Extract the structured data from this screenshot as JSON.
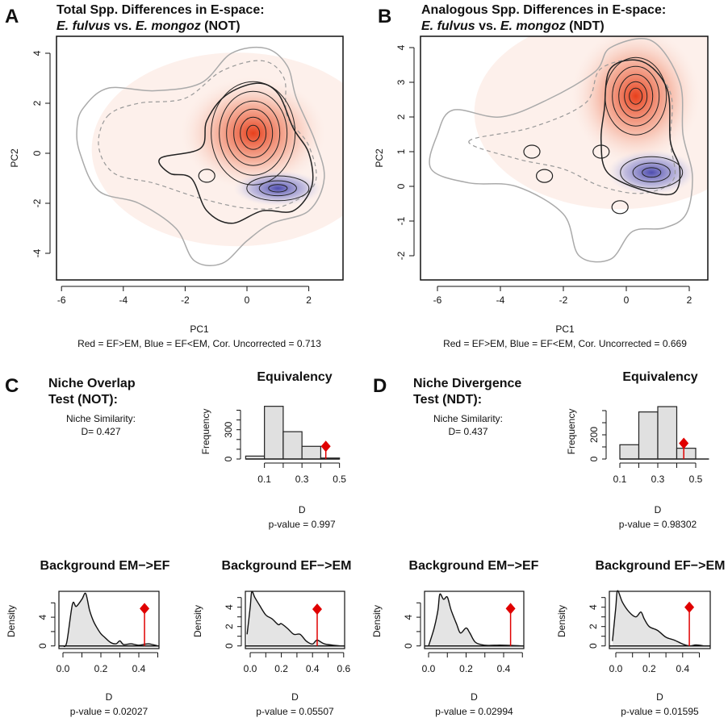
{
  "colors": {
    "positive": "#e8401c",
    "negative": "#3a3aa8",
    "marker": "#e00000",
    "bar_fill": "#e0e0e0",
    "contour_outer": "#aaaaaa"
  },
  "panels": {
    "A": {
      "letter": "A",
      "title_line1": "Total Spp. Differences in E-space:",
      "species1": "E. fulvus",
      "vs": " vs. ",
      "species2": "E. mongoz",
      "test": " (NOT)",
      "xlabel": "PC1",
      "ylabel": "PC2",
      "subtitle": "Red = EF>EM, Blue = EF<EM, Cor. Uncorrected = 0.713"
    },
    "B": {
      "letter": "B",
      "title_line1": "Analogous Spp. Differences in E-space:",
      "species1": "E. fulvus",
      "vs": " vs. ",
      "species2": "E. mongoz",
      "test": " (NDT)",
      "xlabel": "PC1",
      "ylabel": "PC2",
      "subtitle": "Red = EF>EM, Blue = EF<EM, Cor. Uncorrected = 0.669"
    },
    "C": {
      "letter": "C",
      "title_line1": "Niche Overlap",
      "title_line2": "Test (NOT):",
      "similarity_label": "Niche Similarity:",
      "similarity_value": "D= 0.427"
    },
    "D": {
      "letter": "D",
      "title_line1": "Niche Divergence",
      "title_line2": "Test (NDT):",
      "similarity_label": "Niche Similarity:",
      "similarity_value": "D= 0.437"
    }
  },
  "chart_data": [
    {
      "id": "A",
      "type": "heatmap",
      "xlim": [
        -6.15,
        3.1
      ],
      "ylim": [
        -5.05,
        4.7
      ],
      "xticks": [
        "-6",
        "-4",
        "-2",
        "0",
        "2"
      ],
      "yticks": [
        "4",
        "2",
        "0",
        "-2",
        "-4"
      ],
      "max_positive_peak": [
        0.2,
        0.8
      ],
      "max_negative_peak": [
        1.0,
        -1.4
      ],
      "correlation_uncorrected": 0.713
    },
    {
      "id": "B",
      "type": "heatmap",
      "xlim": [
        -6.5,
        2.6
      ],
      "ylim": [
        -2.7,
        4.3
      ],
      "xticks": [
        "-6",
        "-4",
        "-2",
        "0",
        "2"
      ],
      "yticks": [
        "4",
        "3",
        "2",
        "1",
        "0",
        "-1",
        "-2"
      ],
      "max_positive_peak": [
        0.3,
        2.6
      ],
      "max_negative_peak": [
        0.8,
        0.4
      ],
      "correlation_uncorrected": 0.669
    },
    {
      "id": "C-equivalency",
      "type": "bar",
      "title": "Equivalency",
      "xlabel": "D",
      "ylabel": "Frequency",
      "bins": [
        [
          0.0,
          0.1
        ],
        [
          0.1,
          0.2
        ],
        [
          0.2,
          0.3
        ],
        [
          0.3,
          0.4
        ],
        [
          0.4,
          0.5
        ]
      ],
      "values": [
        30,
        540,
        280,
        130,
        10
      ],
      "xticks": [
        "0.1",
        "0.3",
        "0.5"
      ],
      "yticks": [
        "0",
        "300"
      ],
      "observed": 0.427,
      "pvalue_text": "p-value =  0.997"
    },
    {
      "id": "D-equivalency",
      "type": "bar",
      "title": "Equivalency",
      "xlabel": "D",
      "ylabel": "Frequency",
      "bins": [
        [
          0.1,
          0.2
        ],
        [
          0.2,
          0.3
        ],
        [
          0.3,
          0.4
        ],
        [
          0.4,
          0.5
        ]
      ],
      "values": [
        118,
        389,
        433,
        89
      ],
      "xticks": [
        "0.1",
        "0.3",
        "0.5"
      ],
      "yticks": [
        "0",
        "200"
      ],
      "observed": 0.437,
      "pvalue_text": "p-value =  0.98302"
    },
    {
      "id": "C-bg-em-ef",
      "type": "area",
      "title": "Background EM−>EF",
      "xlabel": "D",
      "ylabel": "Density",
      "x": [
        0,
        0.02,
        0.05,
        0.07,
        0.1,
        0.12,
        0.14,
        0.16,
        0.18,
        0.2,
        0.22,
        0.25,
        0.28,
        0.3,
        0.32,
        0.36,
        0.4,
        0.45,
        0.5
      ],
      "y": [
        0,
        0.5,
        5.8,
        5.5,
        6.5,
        7.3,
        5,
        3.5,
        2.5,
        1.7,
        1.2,
        0.5,
        0.3,
        0.7,
        0.2,
        0.3,
        0.1,
        0.3,
        0
      ],
      "xticks": [
        "0.0",
        "0.2",
        "0.4"
      ],
      "yticks": [
        "0",
        "4"
      ],
      "observed": 0.43,
      "pvalue_text": "p-value =  0.02027"
    },
    {
      "id": "C-bg-ef-em",
      "type": "area",
      "title": "Background EF−>EM",
      "xlabel": "D",
      "ylabel": "Density",
      "x": [
        -0.02,
        0,
        0.01,
        0.03,
        0.06,
        0.1,
        0.14,
        0.18,
        0.2,
        0.24,
        0.28,
        0.32,
        0.36,
        0.4,
        0.43,
        0.48,
        0.58
      ],
      "y": [
        1.2,
        4,
        5.6,
        5,
        4.2,
        3.2,
        2.8,
        2.2,
        2.3,
        1.8,
        1.2,
        1.2,
        0.5,
        0.2,
        0.6,
        0.2,
        0
      ],
      "xticks": [
        "0.0",
        "0.2",
        "0.4",
        "0.6"
      ],
      "yticks": [
        "0",
        "2",
        "4"
      ],
      "observed": 0.43,
      "pvalue_text": "p-value =  0.05507"
    },
    {
      "id": "D-bg-em-ef",
      "type": "area",
      "title": "Background EM−>EF",
      "xlabel": "D",
      "ylabel": "Density",
      "x": [
        0,
        0.03,
        0.05,
        0.06,
        0.08,
        0.1,
        0.12,
        0.15,
        0.17,
        0.2,
        0.22,
        0.25,
        0.3,
        0.35,
        0.4,
        0.5
      ],
      "y": [
        0,
        2.5,
        5,
        7.2,
        6.5,
        6.8,
        5,
        3,
        1.8,
        2.5,
        1.8,
        0.5,
        0.1,
        0.1,
        0.1,
        0
      ],
      "xticks": [
        "0.0",
        "0.2",
        "0.4"
      ],
      "yticks": [
        "0",
        "4"
      ],
      "observed": 0.437,
      "pvalue_text": "p-value =  0.02994"
    },
    {
      "id": "D-bg-ef-em",
      "type": "area",
      "title": "Background EF−>EM",
      "xlabel": "D",
      "ylabel": "Density",
      "x": [
        -0.02,
        0,
        0.01,
        0.04,
        0.08,
        0.12,
        0.15,
        0.17,
        0.2,
        0.25,
        0.3,
        0.35,
        0.4,
        0.44,
        0.48,
        0.53
      ],
      "y": [
        0.5,
        4,
        5.7,
        4.5,
        3.5,
        3,
        3.5,
        2.8,
        2,
        1.6,
        0.9,
        0.6,
        0.2,
        0,
        0.1,
        0
      ],
      "xticks": [
        "0.0",
        "0.2",
        "0.4"
      ],
      "yticks": [
        "0",
        "2",
        "4"
      ],
      "observed": 0.44,
      "pvalue_text": "p-value =  0.01595"
    }
  ]
}
